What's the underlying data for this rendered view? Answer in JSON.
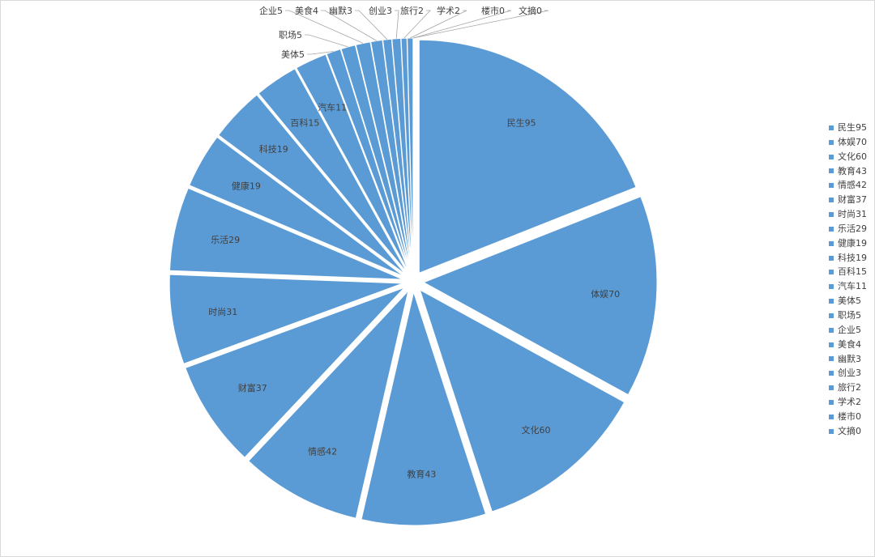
{
  "chart_data": {
    "type": "pie",
    "title": "",
    "slice_color": "#5b9bd5",
    "legend_position": "right",
    "exploded": true,
    "categories": [
      "民生",
      "体娱",
      "文化",
      "教育",
      "情感",
      "财富",
      "时尚",
      "乐活",
      "健康",
      "科技",
      "百科",
      "汽车",
      "美体",
      "职场",
      "企业",
      "美食",
      "幽默",
      "创业",
      "旅行",
      "学术",
      "楼市",
      "文摘"
    ],
    "values": [
      95,
      70,
      60,
      43,
      42,
      37,
      31,
      29,
      19,
      19,
      15,
      11,
      5,
      5,
      5,
      4,
      3,
      3,
      2,
      2,
      0,
      0
    ],
    "labels": [
      "民生95",
      "体娱70",
      "文化60",
      "教育43",
      "情感42",
      "财富37",
      "时尚31",
      "乐活29",
      "健康19",
      "科技19",
      "百科15",
      "汽车11",
      "美体5",
      "职场5",
      "企业5",
      "美食4",
      "幽默3",
      "创业3",
      "旅行2",
      "学术2",
      "楼市0",
      "文摘0"
    ]
  }
}
